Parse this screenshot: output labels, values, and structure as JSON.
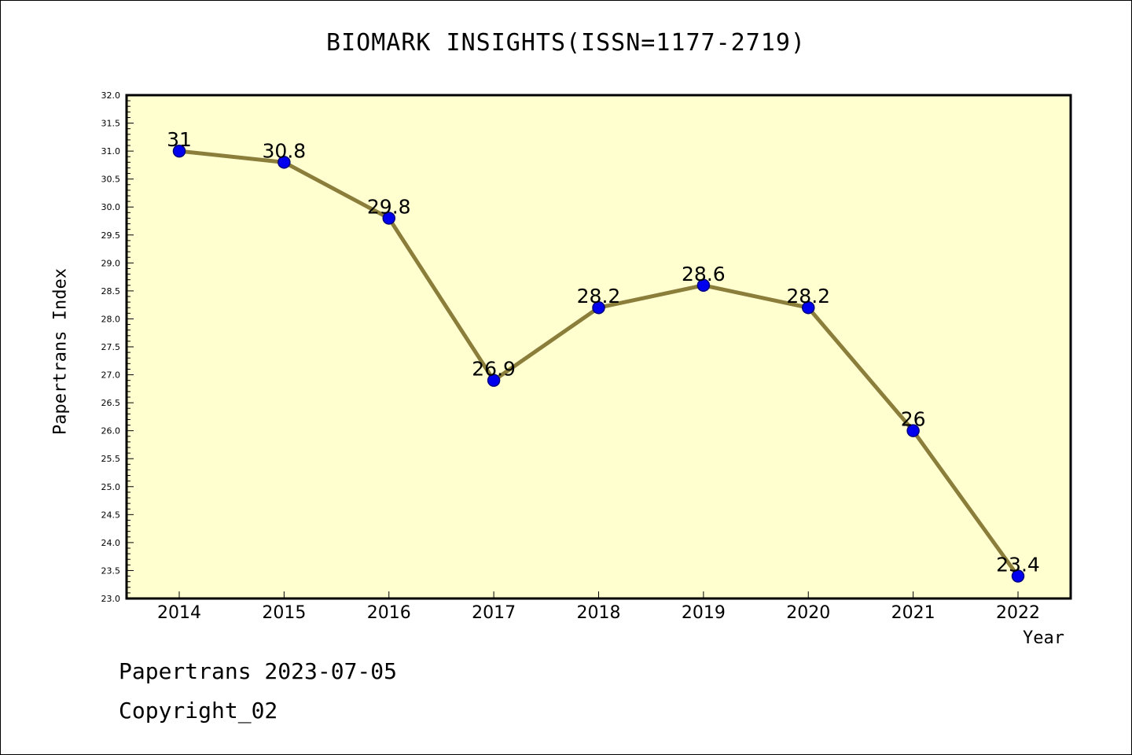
{
  "chart_data": {
    "type": "line",
    "title": "BIOMARK INSIGHTS(ISSN=1177-2719)",
    "xlabel": "Year",
    "ylabel": "Papertrans Index",
    "x": [
      "2014",
      "2015",
      "2016",
      "2017",
      "2018",
      "2019",
      "2020",
      "2021",
      "2022"
    ],
    "values": [
      31,
      30.8,
      29.8,
      26.9,
      28.2,
      28.6,
      28.2,
      26,
      23.4
    ],
    "value_labels": [
      "31",
      "30.8",
      "29.8",
      "26.9",
      "28.2",
      "28.6",
      "28.2",
      "26",
      "23.4"
    ],
    "ylim": [
      23.0,
      32.0
    ],
    "y_major_step": 0.5,
    "y_tick_labels": [
      "23.0",
      "23.5",
      "24.0",
      "24.5",
      "25.0",
      "25.5",
      "26.0",
      "26.5",
      "27.0",
      "27.5",
      "28.0",
      "28.5",
      "29.0",
      "29.5",
      "30.0",
      "30.5",
      "31.0",
      "31.5",
      "32.0"
    ],
    "grid": false,
    "colors": {
      "plot_background": "#ffffd0",
      "line": "#8b7d3a",
      "marker_fill": "#0000ee",
      "marker_stroke": "#000080"
    }
  },
  "footer": {
    "line1": "Papertrans 2023-07-05",
    "line2": "Copyright_02"
  }
}
